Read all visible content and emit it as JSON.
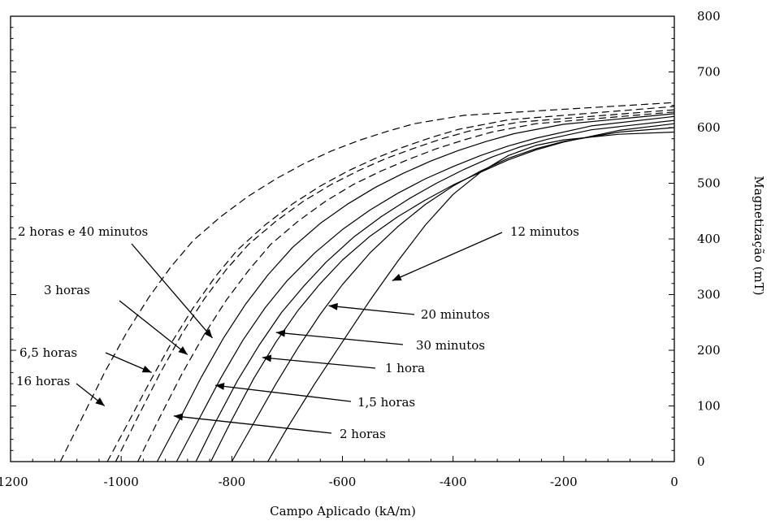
{
  "chart_data": {
    "type": "line",
    "title": "",
    "xlabel": "Campo Aplicado (kA/m)",
    "ylabel": "Magnetização (mT)",
    "xlim": [
      -1200,
      0
    ],
    "ylim": [
      0,
      800
    ],
    "xticks": [
      -1200,
      -1000,
      -800,
      -600,
      -400,
      -200,
      0
    ],
    "yticks": [
      0,
      100,
      200,
      300,
      400,
      500,
      600,
      700,
      800
    ],
    "grid": false,
    "legend": "none",
    "series": [
      {
        "style": "solid",
        "color": "#000000",
        "points": [
          [
            -735,
            0
          ],
          [
            -700,
            60
          ],
          [
            -650,
            140
          ],
          [
            -600,
            215
          ],
          [
            -550,
            290
          ],
          [
            -500,
            360
          ],
          [
            -450,
            425
          ],
          [
            -400,
            480
          ],
          [
            -350,
            520
          ],
          [
            -300,
            550
          ],
          [
            -250,
            568
          ],
          [
            -200,
            578
          ],
          [
            -100,
            588
          ],
          [
            0,
            592
          ]
        ]
      },
      {
        "style": "solid",
        "color": "#000000",
        "points": [
          [
            -800,
            0
          ],
          [
            -760,
            70
          ],
          [
            -720,
            140
          ],
          [
            -680,
            205
          ],
          [
            -640,
            265
          ],
          [
            -600,
            318
          ],
          [
            -550,
            375
          ],
          [
            -500,
            422
          ],
          [
            -450,
            462
          ],
          [
            -400,
            495
          ],
          [
            -350,
            522
          ],
          [
            -300,
            545
          ],
          [
            -250,
            562
          ],
          [
            -200,
            575
          ],
          [
            -100,
            592
          ],
          [
            0,
            600
          ]
        ]
      },
      {
        "style": "solid",
        "color": "#000000",
        "points": [
          [
            -838,
            0
          ],
          [
            -800,
            75
          ],
          [
            -760,
            150
          ],
          [
            -720,
            215
          ],
          [
            -680,
            272
          ],
          [
            -640,
            320
          ],
          [
            -600,
            362
          ],
          [
            -550,
            405
          ],
          [
            -500,
            440
          ],
          [
            -450,
            470
          ],
          [
            -400,
            497
          ],
          [
            -350,
            520
          ],
          [
            -300,
            542
          ],
          [
            -250,
            560
          ],
          [
            -200,
            574
          ],
          [
            -100,
            595
          ],
          [
            0,
            607
          ]
        ]
      },
      {
        "style": "solid",
        "color": "#000000",
        "points": [
          [
            -865,
            0
          ],
          [
            -830,
            70
          ],
          [
            -790,
            145
          ],
          [
            -750,
            210
          ],
          [
            -710,
            268
          ],
          [
            -670,
            315
          ],
          [
            -630,
            358
          ],
          [
            -580,
            403
          ],
          [
            -530,
            440
          ],
          [
            -480,
            472
          ],
          [
            -430,
            500
          ],
          [
            -380,
            525
          ],
          [
            -330,
            547
          ],
          [
            -280,
            565
          ],
          [
            -230,
            579
          ],
          [
            -150,
            596
          ],
          [
            0,
            613
          ]
        ]
      },
      {
        "style": "solid",
        "color": "#000000",
        "points": [
          [
            -900,
            0
          ],
          [
            -860,
            75
          ],
          [
            -820,
            150
          ],
          [
            -780,
            218
          ],
          [
            -740,
            276
          ],
          [
            -700,
            325
          ],
          [
            -650,
            375
          ],
          [
            -600,
            417
          ],
          [
            -550,
            452
          ],
          [
            -500,
            482
          ],
          [
            -450,
            508
          ],
          [
            -400,
            530
          ],
          [
            -350,
            550
          ],
          [
            -300,
            567
          ],
          [
            -250,
            581
          ],
          [
            -150,
            603
          ],
          [
            0,
            620
          ]
        ]
      },
      {
        "style": "solid",
        "color": "#000000",
        "points": [
          [
            -935,
            0
          ],
          [
            -895,
            75
          ],
          [
            -855,
            152
          ],
          [
            -815,
            222
          ],
          [
            -775,
            283
          ],
          [
            -735,
            335
          ],
          [
            -690,
            385
          ],
          [
            -640,
            428
          ],
          [
            -590,
            463
          ],
          [
            -540,
            493
          ],
          [
            -490,
            518
          ],
          [
            -440,
            540
          ],
          [
            -390,
            559
          ],
          [
            -340,
            575
          ],
          [
            -290,
            589
          ],
          [
            -200,
            606
          ],
          [
            0,
            625
          ]
        ]
      },
      {
        "style": "dashed",
        "color": "#000000",
        "points": [
          [
            -970,
            0
          ],
          [
            -930,
            80
          ],
          [
            -890,
            158
          ],
          [
            -850,
            228
          ],
          [
            -810,
            290
          ],
          [
            -770,
            343
          ],
          [
            -730,
            390
          ],
          [
            -680,
            432
          ],
          [
            -630,
            468
          ],
          [
            -580,
            498
          ],
          [
            -530,
            522
          ],
          [
            -480,
            543
          ],
          [
            -430,
            562
          ],
          [
            -380,
            578
          ],
          [
            -330,
            592
          ],
          [
            -250,
            607
          ],
          [
            0,
            628
          ]
        ]
      },
      {
        "style": "dashed",
        "color": "#000000",
        "points": [
          [
            -1010,
            0
          ],
          [
            -970,
            80
          ],
          [
            -930,
            158
          ],
          [
            -890,
            230
          ],
          [
            -850,
            292
          ],
          [
            -810,
            345
          ],
          [
            -770,
            390
          ],
          [
            -720,
            432
          ],
          [
            -670,
            468
          ],
          [
            -620,
            498
          ],
          [
            -570,
            523
          ],
          [
            -520,
            545
          ],
          [
            -470,
            563
          ],
          [
            -420,
            580
          ],
          [
            -370,
            594
          ],
          [
            -280,
            610
          ],
          [
            0,
            632
          ]
        ]
      },
      {
        "style": "dashed",
        "color": "#000000",
        "points": [
          [
            -1025,
            0
          ],
          [
            -990,
            65
          ],
          [
            -950,
            140
          ],
          [
            -910,
            212
          ],
          [
            -870,
            276
          ],
          [
            -830,
            332
          ],
          [
            -790,
            380
          ],
          [
            -740,
            425
          ],
          [
            -690,
            463
          ],
          [
            -640,
            495
          ],
          [
            -590,
            522
          ],
          [
            -540,
            545
          ],
          [
            -490,
            565
          ],
          [
            -440,
            582
          ],
          [
            -390,
            597
          ],
          [
            -300,
            614
          ],
          [
            0,
            638
          ]
        ]
      },
      {
        "style": "dashed",
        "color": "#000000",
        "points": [
          [
            -1110,
            0
          ],
          [
            -1070,
            80
          ],
          [
            -1030,
            160
          ],
          [
            -990,
            232
          ],
          [
            -950,
            295
          ],
          [
            -910,
            350
          ],
          [
            -870,
            397
          ],
          [
            -820,
            440
          ],
          [
            -770,
            477
          ],
          [
            -720,
            508
          ],
          [
            -670,
            535
          ],
          [
            -620,
            558
          ],
          [
            -570,
            577
          ],
          [
            -520,
            593
          ],
          [
            -470,
            607
          ],
          [
            -380,
            622
          ],
          [
            0,
            645
          ]
        ]
      }
    ],
    "annotations": [
      {
        "text": "12 minutos",
        "target": [
          -510,
          325
        ]
      },
      {
        "text": "20 minutos",
        "target": [
          -625,
          280
        ]
      },
      {
        "text": "30 minutos",
        "target": [
          -720,
          232
        ]
      },
      {
        "text": "1 hora",
        "target": [
          -745,
          187
        ]
      },
      {
        "text": "1,5 horas",
        "target": [
          -830,
          137
        ]
      },
      {
        "text": "2 horas",
        "target": [
          -905,
          82
        ]
      },
      {
        "text": "2 horas e 40 minutos",
        "target": [
          -835,
          222
        ]
      },
      {
        "text": "3 horas",
        "target": [
          -880,
          192
        ]
      },
      {
        "text": "6,5 horas",
        "target": [
          -945,
          160
        ]
      },
      {
        "text": "16 horas",
        "target": [
          -1030,
          100
        ]
      }
    ]
  }
}
